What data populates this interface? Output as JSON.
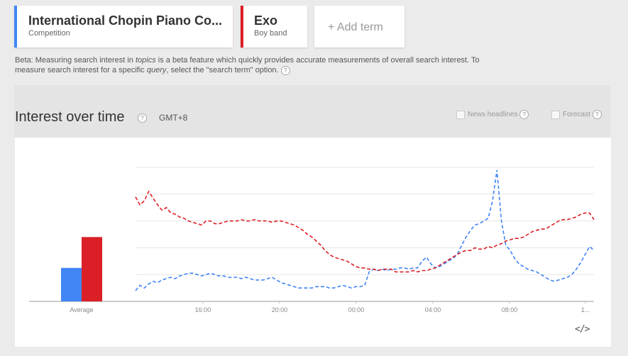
{
  "terms": [
    {
      "title": "International Chopin Piano Co...",
      "subtitle": "Competition",
      "color": "#4285f4"
    },
    {
      "title": "Exo",
      "subtitle": "Boy band",
      "color": "#db1f26"
    }
  ],
  "add_term": {
    "label": "+ Add term"
  },
  "beta": {
    "p1": "Beta: Measuring search interest in ",
    "topics": "topics",
    "p2": " is a beta feature which quickly provides accurate measurements of overall search interest. To measure search interest for a specific ",
    "query": "query",
    "p3": ", select the \"search term\" option."
  },
  "section": {
    "title": "Interest over time",
    "timezone": "GMT+8",
    "help": "?"
  },
  "options": {
    "news": "News headlines",
    "forecast": "Forecast"
  },
  "embed_label": "</>",
  "chart_data": {
    "type": "line",
    "x_ticks": [
      "16:00",
      "20:00",
      "00:00",
      "04:00",
      "08:00",
      "1..."
    ],
    "average_label": "Average",
    "grid": true,
    "ylim": [
      0,
      100
    ],
    "averages": [
      {
        "name": "International Chopin Piano Competition",
        "value": 25,
        "color": "#4285f4"
      },
      {
        "name": "Exo",
        "value": 48,
        "color": "#db1f26"
      }
    ],
    "series": [
      {
        "name": "International Chopin Piano Competition",
        "color": "#4285f4",
        "values": [
          8,
          12,
          10,
          13,
          15,
          14,
          16,
          17,
          18,
          17,
          19,
          20,
          21,
          21,
          20,
          19,
          20,
          21,
          20,
          19,
          19,
          18,
          18,
          18,
          17,
          18,
          17,
          16,
          16,
          16,
          17,
          18,
          16,
          14,
          13,
          12,
          11,
          10,
          10,
          10,
          10,
          11,
          11,
          11,
          10,
          10,
          11,
          12,
          11,
          10,
          11,
          11,
          12,
          22,
          24,
          23,
          24,
          23,
          24,
          24,
          25,
          25,
          24,
          25,
          25,
          30,
          33,
          28,
          25,
          26,
          28,
          30,
          32,
          35,
          42,
          48,
          53,
          57,
          58,
          60,
          62,
          75,
          98,
          60,
          42,
          38,
          32,
          28,
          26,
          24,
          23,
          22,
          20,
          18,
          16,
          15,
          16,
          17,
          18,
          20,
          24,
          29,
          35,
          41,
          38
        ]
      },
      {
        "name": "Exo",
        "color": "#db1f26",
        "values": [
          78,
          72,
          75,
          82,
          77,
          72,
          68,
          70,
          66,
          65,
          63,
          62,
          60,
          59,
          58,
          57,
          60,
          60,
          58,
          58,
          59,
          60,
          60,
          60,
          61,
          60,
          60,
          61,
          60,
          60,
          60,
          59,
          60,
          60,
          59,
          58,
          57,
          55,
          53,
          50,
          48,
          45,
          42,
          38,
          35,
          33,
          32,
          31,
          30,
          28,
          26,
          25,
          25,
          24,
          24,
          23,
          24,
          24,
          24,
          22,
          22,
          22,
          22,
          23,
          22,
          23,
          23,
          24,
          25,
          27,
          29,
          31,
          33,
          35,
          37,
          38,
          38,
          40,
          39,
          39,
          41,
          40,
          42,
          43,
          45,
          46,
          47,
          47,
          48,
          50,
          52,
          53,
          54,
          54,
          56,
          58,
          60,
          61,
          61,
          62,
          63,
          65,
          66,
          66,
          61
        ]
      }
    ]
  }
}
